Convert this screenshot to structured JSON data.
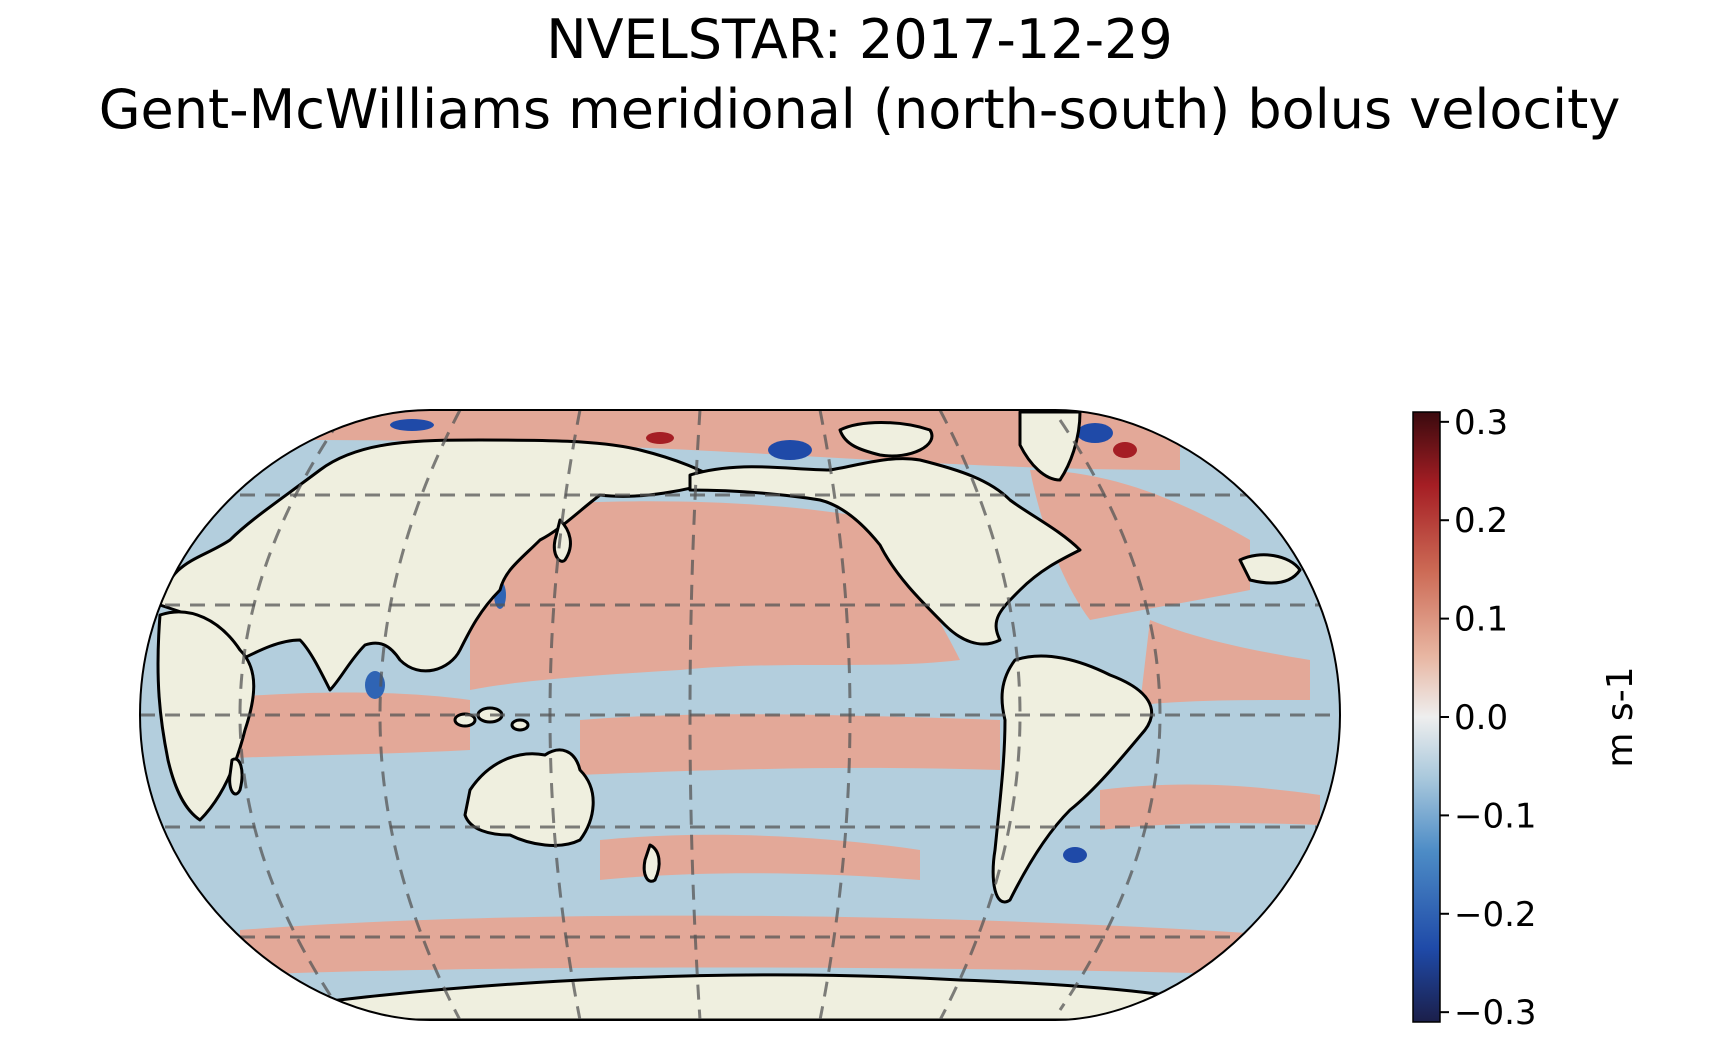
{
  "title": {
    "line1": "NVELSTAR: 2017-12-29",
    "line2": "Gent-McWilliams meridional (north-south) bolus velocity"
  },
  "colorbar": {
    "unit": "m s-1",
    "ticks": [
      "0.3",
      "0.2",
      "0.1",
      "0.0",
      "−0.1",
      "−0.2",
      "−0.3"
    ],
    "range": [
      -0.31,
      0.31
    ],
    "colormap": [
      "#1b1f4a",
      "#1f4aa8",
      "#4d8cc6",
      "#a9c8dc",
      "#eeeeee",
      "#e8b6a2",
      "#cc6a55",
      "#a51e24",
      "#3a0a0e"
    ]
  },
  "colors": {
    "land": "#efefdf",
    "positive": "#e3a898",
    "negative": "#b3cedd"
  }
}
